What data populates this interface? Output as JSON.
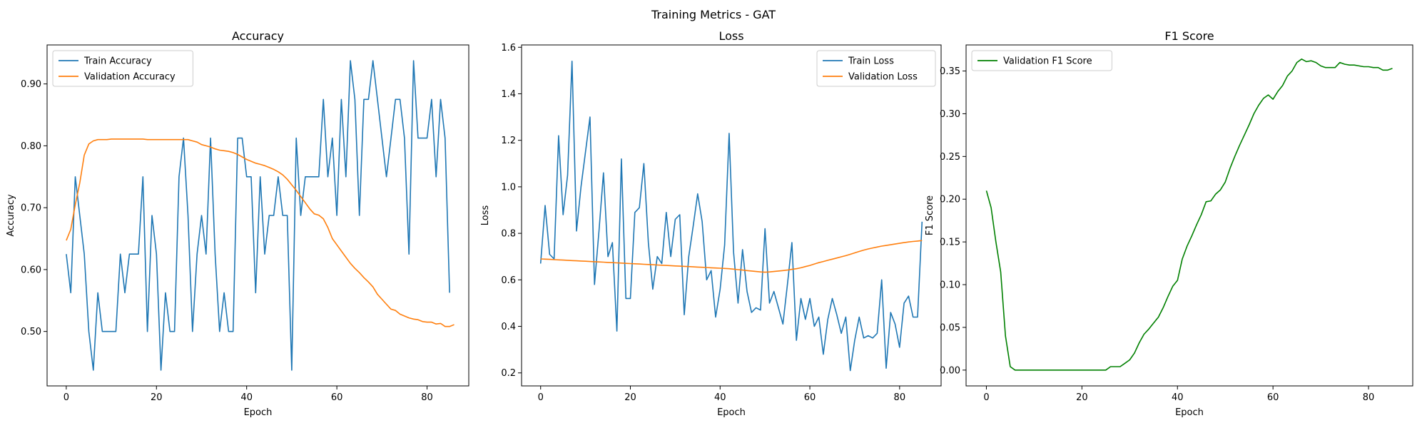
{
  "figure": {
    "suptitle": "Training Metrics - GAT"
  },
  "colors": {
    "blue": "#1f77b4",
    "orange": "#ff7f0e",
    "green": "#008000"
  },
  "chart_data": [
    {
      "type": "line",
      "title": "Accuracy",
      "xlabel": "Epoch",
      "ylabel": "Accuracy",
      "xlim": [
        -4.25,
        89.25
      ],
      "ylim": [
        0.412,
        0.963
      ],
      "xticks": [
        0,
        20,
        40,
        60,
        80
      ],
      "yticks": [
        0.5,
        0.6,
        0.7,
        0.8,
        0.9
      ],
      "legend_position": "upper-left",
      "series": [
        {
          "name": "Train Accuracy",
          "color": "#1f77b4",
          "values": [
            0.625,
            0.5625,
            0.75,
            0.6875,
            0.625,
            0.5,
            0.4375,
            0.5625,
            0.5,
            0.5,
            0.5,
            0.5,
            0.625,
            0.5625,
            0.625,
            0.625,
            0.625,
            0.75,
            0.5,
            0.6875,
            0.625,
            0.4375,
            0.5625,
            0.5,
            0.5,
            0.75,
            0.8125,
            0.6875,
            0.5,
            0.625,
            0.6875,
            0.625,
            0.8125,
            0.625,
            0.5,
            0.5625,
            0.5,
            0.5,
            0.8125,
            0.8125,
            0.75,
            0.75,
            0.5625,
            0.75,
            0.625,
            0.6875,
            0.6875,
            0.75,
            0.6875,
            0.6875,
            0.4375,
            0.8125,
            0.6875,
            0.75,
            0.75,
            0.75,
            0.75,
            0.875,
            0.75,
            0.8125,
            0.6875,
            0.875,
            0.75,
            0.9375,
            0.875,
            0.6875,
            0.875,
            0.875,
            0.9375,
            0.875,
            0.8125,
            0.75,
            0.8125,
            0.875,
            0.875,
            0.8125,
            0.625,
            0.9375,
            0.8125,
            0.8125,
            0.8125,
            0.875,
            0.75,
            0.875,
            0.8125,
            0.5625
          ]
        },
        {
          "name": "Validation Accuracy",
          "color": "#ff7f0e",
          "values": [
            0.647,
            0.665,
            0.705,
            0.74,
            0.785,
            0.803,
            0.808,
            0.81,
            0.81,
            0.81,
            0.811,
            0.811,
            0.811,
            0.811,
            0.811,
            0.811,
            0.811,
            0.811,
            0.81,
            0.81,
            0.81,
            0.81,
            0.81,
            0.81,
            0.81,
            0.81,
            0.81,
            0.81,
            0.808,
            0.806,
            0.802,
            0.8,
            0.798,
            0.795,
            0.793,
            0.792,
            0.791,
            0.789,
            0.786,
            0.782,
            0.778,
            0.775,
            0.772,
            0.77,
            0.768,
            0.765,
            0.762,
            0.758,
            0.753,
            0.746,
            0.737,
            0.728,
            0.718,
            0.708,
            0.698,
            0.69,
            0.688,
            0.682,
            0.668,
            0.65,
            0.64,
            0.63,
            0.62,
            0.61,
            0.602,
            0.595,
            0.587,
            0.58,
            0.572,
            0.56,
            0.552,
            0.544,
            0.536,
            0.534,
            0.528,
            0.525,
            0.522,
            0.52,
            0.519,
            0.516,
            0.515,
            0.515,
            0.512,
            0.513,
            0.508,
            0.508,
            0.511
          ]
        }
      ]
    },
    {
      "type": "line",
      "title": "Loss",
      "xlabel": "Epoch",
      "ylabel": "Loss",
      "xlim": [
        -4.25,
        89.25
      ],
      "ylim": [
        0.144,
        1.61
      ],
      "xticks": [
        0,
        20,
        40,
        60,
        80
      ],
      "yticks": [
        0.2,
        0.4,
        0.6,
        0.8,
        1.0,
        1.2,
        1.4,
        1.6
      ],
      "legend_position": "upper-right",
      "series": [
        {
          "name": "Train Loss",
          "color": "#1f77b4",
          "values": [
            0.67,
            0.92,
            0.71,
            0.69,
            1.22,
            0.88,
            1.05,
            1.54,
            0.81,
            1.0,
            1.15,
            1.3,
            0.58,
            0.81,
            1.06,
            0.7,
            0.76,
            0.38,
            1.12,
            0.52,
            0.52,
            0.89,
            0.91,
            1.1,
            0.76,
            0.56,
            0.7,
            0.67,
            0.89,
            0.7,
            0.86,
            0.88,
            0.45,
            0.7,
            0.83,
            0.97,
            0.85,
            0.6,
            0.64,
            0.44,
            0.56,
            0.75,
            1.23,
            0.72,
            0.5,
            0.73,
            0.55,
            0.46,
            0.48,
            0.47,
            0.82,
            0.5,
            0.55,
            0.48,
            0.41,
            0.58,
            0.76,
            0.34,
            0.52,
            0.43,
            0.52,
            0.4,
            0.44,
            0.28,
            0.43,
            0.52,
            0.45,
            0.37,
            0.44,
            0.21,
            0.34,
            0.44,
            0.35,
            0.36,
            0.35,
            0.37,
            0.6,
            0.22,
            0.46,
            0.41,
            0.31,
            0.5,
            0.53,
            0.44,
            0.44,
            0.85
          ]
        },
        {
          "name": "Validation Loss",
          "color": "#ff7f0e",
          "values": [
            0.69,
            0.689,
            0.688,
            0.687,
            0.686,
            0.685,
            0.684,
            0.683,
            0.682,
            0.681,
            0.68,
            0.679,
            0.678,
            0.677,
            0.676,
            0.675,
            0.674,
            0.673,
            0.672,
            0.671,
            0.67,
            0.669,
            0.668,
            0.667,
            0.666,
            0.665,
            0.664,
            0.663,
            0.662,
            0.661,
            0.66,
            0.659,
            0.658,
            0.657,
            0.656,
            0.655,
            0.654,
            0.653,
            0.652,
            0.651,
            0.65,
            0.649,
            0.648,
            0.646,
            0.644,
            0.642,
            0.64,
            0.638,
            0.636,
            0.634,
            0.633,
            0.634,
            0.636,
            0.638,
            0.64,
            0.642,
            0.645,
            0.648,
            0.652,
            0.657,
            0.662,
            0.668,
            0.674,
            0.679,
            0.684,
            0.689,
            0.694,
            0.699,
            0.704,
            0.71,
            0.716,
            0.722,
            0.728,
            0.733,
            0.737,
            0.741,
            0.745,
            0.748,
            0.751,
            0.754,
            0.757,
            0.76,
            0.763,
            0.765,
            0.767,
            0.769
          ]
        }
      ]
    },
    {
      "type": "line",
      "title": "F1 Score",
      "xlabel": "Epoch",
      "ylabel": "F1 Score",
      "xlim": [
        -4.25,
        89.25
      ],
      "ylim": [
        -0.0185,
        0.3805
      ],
      "xticks": [
        0,
        20,
        40,
        60,
        80
      ],
      "yticks": [
        0.0,
        0.05,
        0.1,
        0.15,
        0.2,
        0.25,
        0.3,
        0.35
      ],
      "legend_position": "upper-left",
      "series": [
        {
          "name": "Validation F1 Score",
          "color": "#008000",
          "values": [
            0.21,
            0.19,
            0.15,
            0.115,
            0.04,
            0.004,
            0.0,
            0.0,
            0.0,
            0.0,
            0.0,
            0.0,
            0.0,
            0.0,
            0.0,
            0.0,
            0.0,
            0.0,
            0.0,
            0.0,
            0.0,
            0.0,
            0.0,
            0.0,
            0.0,
            0.0,
            0.004,
            0.004,
            0.004,
            0.008,
            0.012,
            0.02,
            0.032,
            0.042,
            0.048,
            0.055,
            0.062,
            0.073,
            0.086,
            0.098,
            0.105,
            0.13,
            0.145,
            0.157,
            0.17,
            0.182,
            0.197,
            0.198,
            0.206,
            0.211,
            0.22,
            0.236,
            0.25,
            0.263,
            0.275,
            0.287,
            0.3,
            0.31,
            0.318,
            0.322,
            0.317,
            0.326,
            0.333,
            0.344,
            0.35,
            0.36,
            0.364,
            0.361,
            0.362,
            0.36,
            0.356,
            0.354,
            0.354,
            0.354,
            0.36,
            0.358,
            0.357,
            0.357,
            0.356,
            0.355,
            0.355,
            0.354,
            0.354,
            0.351,
            0.351,
            0.353
          ]
        }
      ]
    }
  ]
}
